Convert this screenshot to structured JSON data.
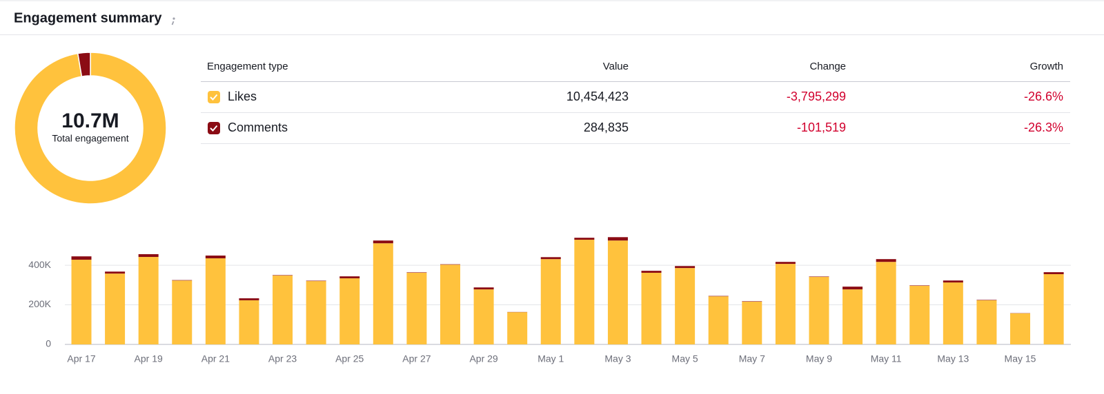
{
  "header": {
    "title": "Engagement summary"
  },
  "table": {
    "headers": [
      "Engagement type",
      "Value",
      "Change",
      "Growth"
    ],
    "rows": [
      {
        "change": "-3,795,299",
        "growth": "-26.6%"
      },
      {
        "change": "-101,519",
        "growth": "-26.3%"
      }
    ]
  },
  "chart_data": [
    {
      "type": "pie",
      "center_value": "10.7M",
      "center_text": "Total engagement",
      "categories": [
        "Likes",
        "Comments"
      ],
      "values": [
        10454423,
        284835
      ],
      "value_labels": [
        "10,454,423",
        "284,835"
      ],
      "colors": [
        "#ffc23d",
        "#8b0c14"
      ]
    },
    {
      "type": "bar",
      "stacked": true,
      "grid": true,
      "categories": [
        "Apr 17",
        null,
        "Apr 19",
        null,
        "Apr 21",
        null,
        "Apr 23",
        null,
        "Apr 25",
        null,
        "Apr 27",
        null,
        "Apr 29",
        null,
        "May 1",
        null,
        "May 3",
        null,
        "May 5",
        null,
        "May 7",
        null,
        "May 9",
        null,
        "May 11",
        null,
        "May 13",
        null,
        "May 15",
        null
      ],
      "series": [
        {
          "name": "Likes",
          "color": "#ffc23d",
          "values": [
            428000,
            358000,
            442000,
            323000,
            435000,
            223000,
            348000,
            320000,
            334000,
            511000,
            362000,
            403000,
            278000,
            163000,
            431000,
            529000,
            525000,
            362000,
            386000,
            243000,
            216000,
            407000,
            341000,
            278000,
            417000,
            296000,
            313000,
            223000,
            157000,
            355000
          ]
        },
        {
          "name": "Comments",
          "color": "#8b0c14",
          "values": [
            17000,
            10000,
            14000,
            2000,
            14000,
            10000,
            2000,
            2000,
            10000,
            14000,
            2000,
            2000,
            10000,
            1000,
            10000,
            10000,
            17000,
            10000,
            10000,
            2000,
            2000,
            10000,
            2000,
            14000,
            14000,
            2000,
            10000,
            2000,
            1000,
            10000
          ]
        }
      ],
      "ylim": [
        0,
        550000
      ],
      "yticks": [
        0,
        {
          "value": 200000,
          "label": "200K"
        },
        {
          "value": 400000,
          "label": "400K"
        }
      ]
    }
  ]
}
